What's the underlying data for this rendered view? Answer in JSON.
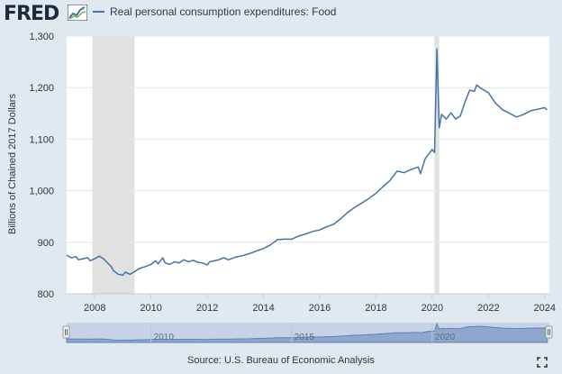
{
  "header": {
    "logo": "FRED",
    "logo_graph_icon": "line-graph-icon"
  },
  "footer": {
    "source": "Source: U.S. Bureau of Economic Analysis",
    "fullscreen_icon": "fullscreen-icon"
  },
  "colors": {
    "series_line": "#4572a7",
    "recession_band": "#e1e1e1",
    "plot_background": "#ffffff",
    "page_background": "#e1e9f0",
    "navigator_fill": "#9cb2d1"
  },
  "chart_data": {
    "type": "line",
    "title": "",
    "xlabel": "",
    "ylabel": "Billions of Chained 2017 Dollars",
    "xlim": [
      "2007-01",
      "2024-03"
    ],
    "ylim": [
      800,
      1300
    ],
    "y_ticks": [
      "800",
      "900",
      "1,000",
      "1,100",
      "1,200",
      "1,300"
    ],
    "x_ticks": [
      "2008",
      "2010",
      "2012",
      "2014",
      "2016",
      "2018",
      "2020",
      "2022",
      "2024"
    ],
    "navigator_ticks": [
      "2010",
      "2015",
      "2020"
    ],
    "grid": true,
    "legend": "top-left",
    "recessions": [
      {
        "start": "2007-12",
        "end": "2009-06"
      },
      {
        "start": "2020-02",
        "end": "2020-04"
      }
    ],
    "series": [
      {
        "name": "Real personal consumption expenditures: Food",
        "points": [
          [
            "2007-01",
            875
          ],
          [
            "2007-03",
            870
          ],
          [
            "2007-05",
            872
          ],
          [
            "2007-06",
            866
          ],
          [
            "2007-08",
            868
          ],
          [
            "2007-10",
            870
          ],
          [
            "2007-11",
            864
          ],
          [
            "2008-01",
            868
          ],
          [
            "2008-03",
            873
          ],
          [
            "2008-05",
            867
          ],
          [
            "2008-06",
            862
          ],
          [
            "2008-08",
            853
          ],
          [
            "2008-09",
            845
          ],
          [
            "2008-11",
            838
          ],
          [
            "2009-01",
            836
          ],
          [
            "2009-02",
            842
          ],
          [
            "2009-04",
            838
          ],
          [
            "2009-06",
            843
          ],
          [
            "2009-08",
            849
          ],
          [
            "2009-10",
            852
          ],
          [
            "2010-01",
            857
          ],
          [
            "2010-03",
            864
          ],
          [
            "2010-04",
            858
          ],
          [
            "2010-06",
            870
          ],
          [
            "2010-07",
            860
          ],
          [
            "2010-09",
            857
          ],
          [
            "2010-11",
            862
          ],
          [
            "2011-01",
            860
          ],
          [
            "2011-03",
            866
          ],
          [
            "2011-05",
            862
          ],
          [
            "2011-07",
            865
          ],
          [
            "2011-09",
            861
          ],
          [
            "2011-11",
            860
          ],
          [
            "2012-01",
            856
          ],
          [
            "2012-02",
            862
          ],
          [
            "2012-04",
            864
          ],
          [
            "2012-06",
            866
          ],
          [
            "2012-08",
            870
          ],
          [
            "2012-10",
            866
          ],
          [
            "2013-01",
            871
          ],
          [
            "2013-04",
            874
          ],
          [
            "2013-07",
            878
          ],
          [
            "2013-10",
            883
          ],
          [
            "2014-01",
            888
          ],
          [
            "2014-04",
            895
          ],
          [
            "2014-07",
            905
          ],
          [
            "2014-10",
            906
          ],
          [
            "2015-01",
            906
          ],
          [
            "2015-04",
            912
          ],
          [
            "2015-07",
            916
          ],
          [
            "2015-10",
            921
          ],
          [
            "2016-01",
            924
          ],
          [
            "2016-04",
            930
          ],
          [
            "2016-07",
            935
          ],
          [
            "2016-10",
            946
          ],
          [
            "2017-01",
            958
          ],
          [
            "2017-04",
            968
          ],
          [
            "2017-07",
            976
          ],
          [
            "2017-10",
            985
          ],
          [
            "2018-01",
            995
          ],
          [
            "2018-04",
            1008
          ],
          [
            "2018-07",
            1020
          ],
          [
            "2018-10",
            1038
          ],
          [
            "2019-01",
            1035
          ],
          [
            "2019-04",
            1041
          ],
          [
            "2019-07",
            1046
          ],
          [
            "2019-08",
            1033
          ],
          [
            "2019-10",
            1062
          ],
          [
            "2020-01",
            1080
          ],
          [
            "2020-02",
            1074
          ],
          [
            "2020-03",
            1275
          ],
          [
            "2020-04",
            1122
          ],
          [
            "2020-05",
            1148
          ],
          [
            "2020-07",
            1139
          ],
          [
            "2020-09",
            1151
          ],
          [
            "2020-11",
            1139
          ],
          [
            "2021-01",
            1145
          ],
          [
            "2021-03",
            1172
          ],
          [
            "2021-05",
            1195
          ],
          [
            "2021-07",
            1193
          ],
          [
            "2021-08",
            1205
          ],
          [
            "2021-10",
            1198
          ],
          [
            "2022-01",
            1190
          ],
          [
            "2022-04",
            1170
          ],
          [
            "2022-07",
            1157
          ],
          [
            "2022-10",
            1150
          ],
          [
            "2023-01",
            1143
          ],
          [
            "2023-04",
            1148
          ],
          [
            "2023-07",
            1155
          ],
          [
            "2023-10",
            1158
          ],
          [
            "2024-01",
            1161
          ],
          [
            "2024-02",
            1157
          ]
        ]
      }
    ]
  }
}
